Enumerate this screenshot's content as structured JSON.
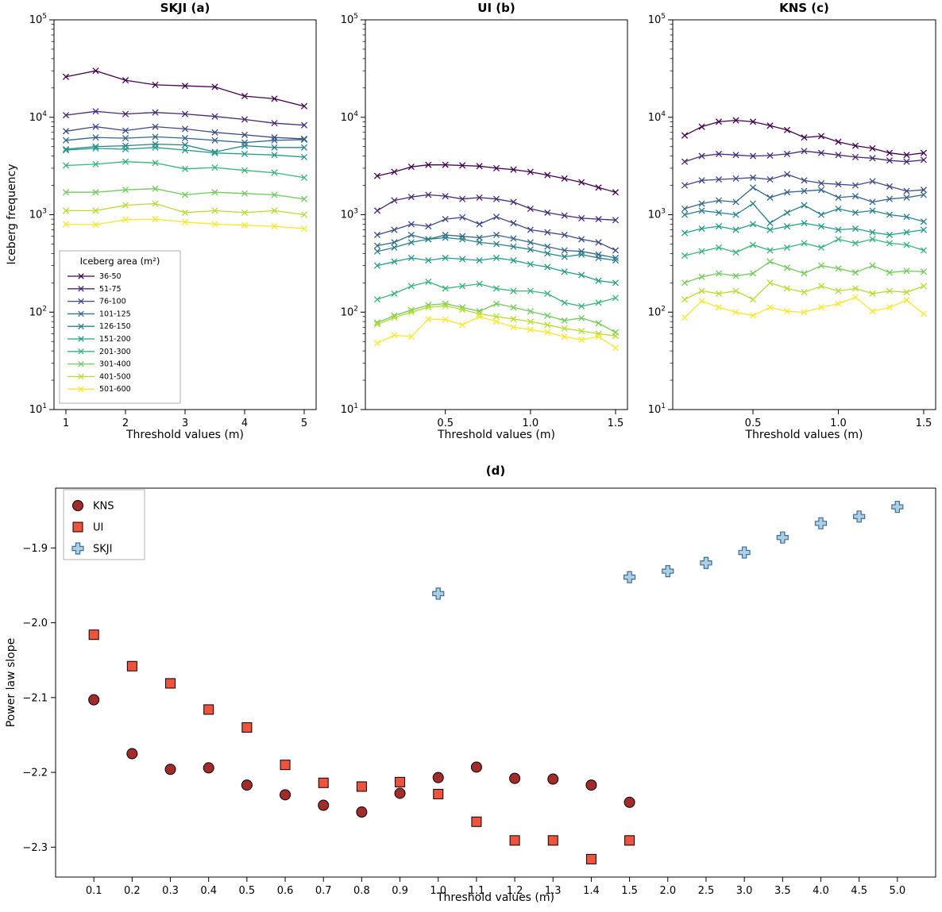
{
  "chart_data": [
    {
      "id": "skji",
      "type": "line",
      "title": "SKJI (a)",
      "xlabel": "Threshold values (m)",
      "ylabel": "Iceberg frequency",
      "yscale": "log",
      "ylim": [
        10,
        100000
      ],
      "yticks_exp": [
        1,
        2,
        3,
        4,
        5
      ],
      "xlim": [
        0.8,
        5.2
      ],
      "xticks": [
        1,
        2,
        3,
        4,
        5
      ],
      "xticklabels": [
        "1",
        "2",
        "3",
        "4",
        "5"
      ],
      "x": [
        1,
        1.5,
        2,
        2.5,
        3,
        3.5,
        4,
        4.5,
        5
      ],
      "legend_title": "Iceberg area (m²)",
      "marker": "x",
      "series": [
        {
          "name": "36-50",
          "color": "#440154",
          "values": [
            26000,
            30000,
            24000,
            21500,
            21000,
            20500,
            16500,
            15500,
            13000
          ]
        },
        {
          "name": "51-75",
          "color": "#482878",
          "values": [
            10500,
            11500,
            10800,
            11200,
            10800,
            10200,
            9500,
            8700,
            8300
          ]
        },
        {
          "name": "76-100",
          "color": "#3e4989",
          "values": [
            7200,
            8000,
            7300,
            8000,
            7600,
            7000,
            6600,
            6200,
            6000
          ]
        },
        {
          "name": "101-125",
          "color": "#31688e",
          "values": [
            5800,
            6200,
            6100,
            6300,
            6100,
            5800,
            5500,
            5800,
            5900
          ]
        },
        {
          "name": "126-150",
          "color": "#26828e",
          "values": [
            4700,
            5000,
            5100,
            5300,
            5200,
            4400,
            5100,
            4900,
            4900
          ]
        },
        {
          "name": "151-200",
          "color": "#1f9e89",
          "values": [
            4600,
            4800,
            4700,
            4900,
            4600,
            4300,
            4200,
            4100,
            3900
          ]
        },
        {
          "name": "201-300",
          "color": "#35b779",
          "values": [
            3200,
            3300,
            3500,
            3400,
            2950,
            3050,
            2850,
            2700,
            2400
          ]
        },
        {
          "name": "301-400",
          "color": "#6ece58",
          "values": [
            1700,
            1700,
            1800,
            1850,
            1600,
            1700,
            1650,
            1600,
            1450
          ]
        },
        {
          "name": "401-500",
          "color": "#b5de2b",
          "values": [
            1100,
            1100,
            1250,
            1300,
            1050,
            1100,
            1050,
            1100,
            1000
          ]
        },
        {
          "name": "501-600",
          "color": "#fde725",
          "values": [
            800,
            790,
            890,
            900,
            840,
            800,
            780,
            760,
            720
          ]
        }
      ]
    },
    {
      "id": "ui",
      "type": "line",
      "title": "UI (b)",
      "xlabel": "Threshold values (m)",
      "ylabel": "",
      "yscale": "log",
      "ylim": [
        10,
        100000
      ],
      "yticks_exp": [
        1,
        2,
        3,
        4,
        5
      ],
      "xlim": [
        0.03,
        1.57
      ],
      "xticks": [
        0.5,
        1.0,
        1.5
      ],
      "xticklabels": [
        "0.5",
        "1.0",
        "1.5"
      ],
      "x": [
        0.1,
        0.2,
        0.3,
        0.4,
        0.5,
        0.6,
        0.7,
        0.8,
        0.9,
        1.0,
        1.1,
        1.2,
        1.3,
        1.4,
        1.5
      ],
      "marker": "x",
      "series": [
        {
          "name": "36-50",
          "color": "#440154",
          "values": [
            2500,
            2750,
            3100,
            3250,
            3250,
            3200,
            3150,
            3000,
            2900,
            2750,
            2550,
            2350,
            2150,
            1900,
            1700
          ]
        },
        {
          "name": "51-75",
          "color": "#482878",
          "values": [
            1100,
            1400,
            1520,
            1600,
            1550,
            1450,
            1500,
            1450,
            1350,
            1150,
            1050,
            980,
            920,
            900,
            880
          ]
        },
        {
          "name": "76-100",
          "color": "#3e4989",
          "values": [
            620,
            700,
            800,
            760,
            900,
            940,
            800,
            950,
            820,
            700,
            660,
            620,
            560,
            520,
            430
          ]
        },
        {
          "name": "101-125",
          "color": "#31688e",
          "values": [
            480,
            520,
            620,
            560,
            620,
            600,
            580,
            620,
            570,
            520,
            470,
            430,
            420,
            390,
            360
          ]
        },
        {
          "name": "126-150",
          "color": "#26828e",
          "values": [
            420,
            460,
            520,
            560,
            580,
            560,
            520,
            500,
            470,
            440,
            400,
            370,
            390,
            360,
            340
          ]
        },
        {
          "name": "151-200",
          "color": "#1f9e89",
          "values": [
            300,
            330,
            360,
            340,
            360,
            350,
            340,
            360,
            340,
            310,
            290,
            260,
            240,
            210,
            200
          ]
        },
        {
          "name": "201-300",
          "color": "#35b779",
          "values": [
            135,
            155,
            185,
            205,
            175,
            185,
            195,
            175,
            165,
            165,
            155,
            125,
            115,
            125,
            140
          ]
        },
        {
          "name": "301-400",
          "color": "#6ece58",
          "values": [
            78,
            92,
            105,
            118,
            122,
            112,
            102,
            122,
            112,
            102,
            92,
            82,
            87,
            77,
            62
          ]
        },
        {
          "name": "401-500",
          "color": "#b5de2b",
          "values": [
            75,
            88,
            100,
            112,
            116,
            106,
            96,
            90,
            85,
            80,
            74,
            68,
            64,
            60,
            57
          ]
        },
        {
          "name": "501-600",
          "color": "#fde725",
          "values": [
            48,
            58,
            56,
            85,
            84,
            74,
            90,
            80,
            70,
            66,
            62,
            56,
            52,
            56,
            43
          ]
        }
      ]
    },
    {
      "id": "kns",
      "type": "line",
      "title": "KNS (c)",
      "xlabel": "Threshold values (m)",
      "ylabel": "",
      "yscale": "log",
      "ylim": [
        10,
        100000
      ],
      "yticks_exp": [
        1,
        2,
        3,
        4,
        5
      ],
      "xlim": [
        0.03,
        1.57
      ],
      "xticks": [
        0.5,
        1.0,
        1.5
      ],
      "xticklabels": [
        "0.5",
        "1.0",
        "1.5"
      ],
      "x": [
        0.1,
        0.2,
        0.3,
        0.4,
        0.5,
        0.6,
        0.7,
        0.8,
        0.9,
        1.0,
        1.1,
        1.2,
        1.3,
        1.4,
        1.5
      ],
      "marker": "x",
      "series": [
        {
          "name": "36-50",
          "color": "#440154",
          "values": [
            6500,
            8000,
            9000,
            9300,
            9000,
            8200,
            7400,
            6200,
            6400,
            5600,
            5100,
            4800,
            4300,
            4100,
            4300
          ]
        },
        {
          "name": "51-75",
          "color": "#482878",
          "values": [
            3500,
            4000,
            4200,
            4100,
            4000,
            4050,
            4200,
            4500,
            4300,
            4100,
            3900,
            3800,
            3600,
            3500,
            3650
          ]
        },
        {
          "name": "76-100",
          "color": "#3e4989",
          "values": [
            2000,
            2250,
            2300,
            2350,
            2400,
            2300,
            2600,
            2250,
            2100,
            2050,
            2000,
            2200,
            1950,
            1750,
            1800
          ]
        },
        {
          "name": "101-125",
          "color": "#31688e",
          "values": [
            1150,
            1300,
            1400,
            1350,
            1900,
            1500,
            1700,
            1750,
            1800,
            1500,
            1550,
            1350,
            1450,
            1500,
            1600
          ]
        },
        {
          "name": "126-150",
          "color": "#26828e",
          "values": [
            1000,
            1100,
            1050,
            1000,
            1300,
            820,
            1050,
            1250,
            1000,
            1150,
            1050,
            1100,
            1000,
            950,
            850
          ]
        },
        {
          "name": "151-200",
          "color": "#1f9e89",
          "values": [
            650,
            720,
            760,
            700,
            800,
            700,
            760,
            820,
            760,
            700,
            720,
            660,
            620,
            660,
            700
          ]
        },
        {
          "name": "201-300",
          "color": "#35b779",
          "values": [
            380,
            420,
            460,
            410,
            490,
            430,
            460,
            510,
            460,
            560,
            510,
            560,
            510,
            490,
            430
          ]
        },
        {
          "name": "301-400",
          "color": "#6ece58",
          "values": [
            200,
            230,
            250,
            235,
            250,
            330,
            285,
            250,
            300,
            280,
            255,
            300,
            255,
            265,
            260
          ]
        },
        {
          "name": "401-500",
          "color": "#b5de2b",
          "values": [
            135,
            165,
            155,
            165,
            135,
            200,
            175,
            160,
            185,
            165,
            175,
            155,
            165,
            160,
            185
          ]
        },
        {
          "name": "501-600",
          "color": "#fde725",
          "values": [
            88,
            130,
            112,
            100,
            92,
            112,
            102,
            100,
            112,
            122,
            142,
            102,
            112,
            132,
            96
          ]
        }
      ]
    },
    {
      "id": "slopes",
      "type": "scatter",
      "title": "(d)",
      "xlabel": "Threshold values (m)",
      "ylabel": "Power law slope",
      "categories": [
        "0.1",
        "0.2",
        "0.3",
        "0.4",
        "0.5",
        "0.6",
        "0.7",
        "0.8",
        "0.9",
        "1.0",
        "1.1",
        "1.2",
        "1.3",
        "1.4",
        "1.5",
        "2.0",
        "2.5",
        "3.0",
        "3.5",
        "4.0",
        "4.5",
        "5.0"
      ],
      "ylim": [
        -2.34,
        -1.82
      ],
      "yticks": [
        -1.9,
        -2.0,
        -2.1,
        -2.2,
        -2.3
      ],
      "yticklabels": [
        "−1.9",
        "−2.0",
        "−2.1",
        "−2.2",
        "−2.3"
      ],
      "legend_position": "upper left",
      "series": [
        {
          "name": "KNS",
          "marker": "circle",
          "color": "#A52A2A",
          "edge": "#000000",
          "x": [
            "0.1",
            "0.2",
            "0.3",
            "0.4",
            "0.5",
            "0.6",
            "0.7",
            "0.8",
            "0.9",
            "1.0",
            "1.1",
            "1.2",
            "1.3",
            "1.4",
            "1.5"
          ],
          "values": [
            -2.103,
            -2.175,
            -2.196,
            -2.194,
            -2.217,
            -2.23,
            -2.244,
            -2.253,
            -2.228,
            -2.207,
            -2.193,
            -2.208,
            -2.209,
            -2.217,
            -2.24
          ]
        },
        {
          "name": "UI",
          "marker": "square",
          "color": "#F0533B",
          "edge": "#000000",
          "x": [
            "0.1",
            "0.2",
            "0.3",
            "0.4",
            "0.5",
            "0.6",
            "0.7",
            "0.8",
            "0.9",
            "1.0",
            "1.1",
            "1.2",
            "1.3",
            "1.4",
            "1.5"
          ],
          "values": [
            -2.016,
            -2.058,
            -2.081,
            -2.116,
            -2.14,
            -2.19,
            -2.214,
            -2.219,
            -2.213,
            -2.229,
            -2.266,
            -2.291,
            -2.291,
            -2.316,
            -2.291
          ]
        },
        {
          "name": "SKJI",
          "marker": "plus",
          "color": "#ABCFE5",
          "edge": "#3D6E99",
          "x": [
            "1.0",
            "1.5",
            "2.0",
            "2.5",
            "3.0",
            "3.5",
            "4.0",
            "4.5",
            "5.0"
          ],
          "values": [
            -1.961,
            -1.939,
            -1.931,
            -1.92,
            -1.906,
            -1.886,
            -1.867,
            -1.858,
            -1.845
          ]
        }
      ]
    }
  ]
}
